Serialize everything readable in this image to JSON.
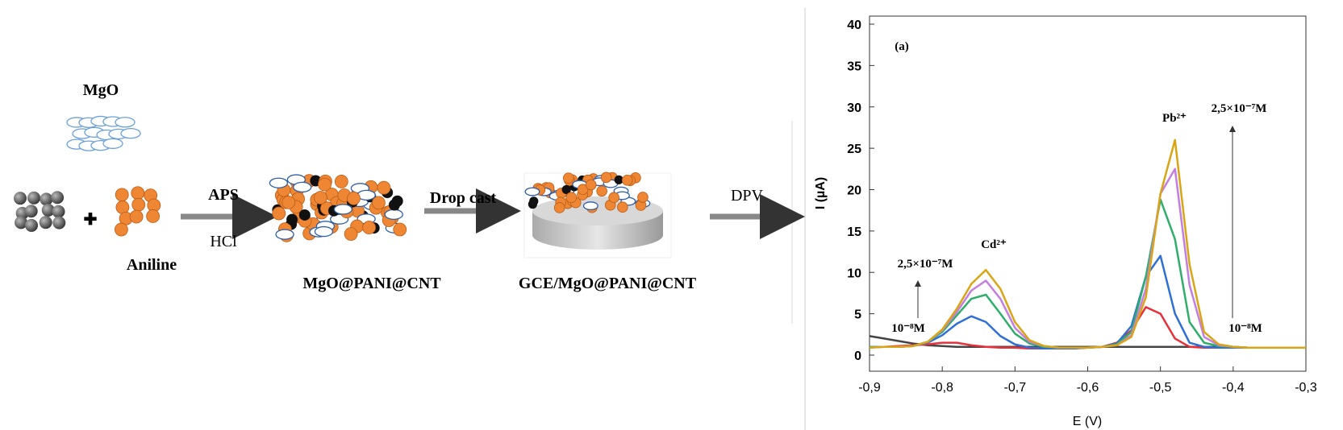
{
  "diagram": {
    "mgo": "MgO",
    "aniline": "Aniline",
    "aps": "APS",
    "hcl": "HCl",
    "composite": "MgO@PANI@CNT",
    "drop_cast": "Drop cast",
    "electrode": "GCE/MgO@PANI@CNT",
    "dpv": "DPV"
  },
  "chart_data": {
    "type": "line",
    "xlabel": "E (V)",
    "ylabel": "I (µA)",
    "annotations": [
      "(a)",
      "Cd²⁺",
      "Pb²⁺",
      "2,5×10⁻⁷M",
      "2,5×10⁻⁷M",
      "10⁻⁸M",
      "10⁻⁸M"
    ],
    "x": [
      -0.9,
      -0.88,
      -0.86,
      -0.84,
      -0.82,
      -0.8,
      -0.78,
      -0.76,
      -0.74,
      -0.72,
      -0.7,
      -0.68,
      -0.66,
      -0.64,
      -0.62,
      -0.6,
      -0.58,
      -0.56,
      -0.54,
      -0.52,
      -0.5,
      -0.48,
      -0.46,
      -0.44,
      -0.42,
      -0.4,
      -0.38,
      -0.36,
      -0.34,
      -0.32,
      -0.3
    ],
    "series": [
      {
        "color": "#444444",
        "values": [
          2.3,
          2.0,
          1.7,
          1.4,
          1.2,
          1.1,
          1.0,
          1.0,
          1.0,
          1.0,
          1.0,
          1.0,
          1.0,
          1.0,
          1.0,
          1.0,
          1.0,
          1.0,
          1.0,
          1.0,
          1.0,
          1.0,
          1.0,
          1.0,
          1.0,
          1.0,
          0.9,
          0.9,
          0.9,
          0.9,
          0.9
        ]
      },
      {
        "color": "#e8303a",
        "values": [
          1.0,
          1.0,
          1.1,
          1.2,
          1.3,
          1.5,
          1.5,
          1.2,
          1.0,
          0.9,
          0.9,
          0.8,
          0.8,
          0.8,
          0.8,
          0.9,
          1.0,
          1.5,
          3.0,
          5.8,
          5.0,
          2.0,
          1.0,
          0.9,
          0.9,
          0.9,
          0.9,
          0.9,
          0.9,
          0.9,
          0.9
        ]
      },
      {
        "color": "#2f6fd6",
        "values": [
          1.0,
          1.0,
          1.0,
          1.1,
          1.5,
          2.4,
          3.8,
          4.7,
          4.0,
          2.3,
          1.3,
          0.9,
          0.8,
          0.8,
          0.8,
          0.9,
          1.0,
          1.4,
          3.5,
          9.5,
          12.0,
          5.0,
          1.5,
          1.0,
          0.9,
          0.9,
          0.9,
          0.9,
          0.9,
          0.9,
          0.9
        ]
      },
      {
        "color": "#2fae6a",
        "values": [
          1.0,
          1.0,
          1.0,
          1.1,
          1.6,
          2.8,
          4.8,
          6.8,
          7.3,
          5.0,
          2.6,
          1.4,
          1.0,
          0.9,
          0.9,
          0.9,
          1.0,
          1.3,
          2.8,
          9.5,
          18.8,
          14.0,
          4.0,
          1.5,
          1.1,
          1.0,
          0.9,
          0.9,
          0.9,
          0.9,
          0.9
        ]
      },
      {
        "color": "#c57ee0",
        "values": [
          0.9,
          1.0,
          1.0,
          1.1,
          1.6,
          3.0,
          5.2,
          7.8,
          9.0,
          6.8,
          3.3,
          1.6,
          1.1,
          0.9,
          0.9,
          0.9,
          1.0,
          1.2,
          2.4,
          8.0,
          19.5,
          22.5,
          8.5,
          2.2,
          1.2,
          1.0,
          0.9,
          0.9,
          0.9,
          0.9,
          0.9
        ]
      },
      {
        "color": "#d9a514",
        "values": [
          0.9,
          1.0,
          1.0,
          1.1,
          1.6,
          3.1,
          5.6,
          8.6,
          10.3,
          8.0,
          4.0,
          1.8,
          1.1,
          0.9,
          0.9,
          0.9,
          1.0,
          1.2,
          2.2,
          7.0,
          19.5,
          26.0,
          11.0,
          2.8,
          1.3,
          1.0,
          0.9,
          0.9,
          0.9,
          0.9,
          0.9
        ]
      }
    ],
    "xlim": [
      -0.9,
      -0.3
    ],
    "xticks": [
      {
        "value": -0.9,
        "label": "-0,9"
      },
      {
        "value": -0.8,
        "label": "-0,8"
      },
      {
        "value": -0.7,
        "label": "-0,7"
      },
      {
        "value": -0.6,
        "label": "-0,6"
      },
      {
        "value": -0.5,
        "label": "-0,5"
      },
      {
        "value": -0.4,
        "label": "-0,4"
      },
      {
        "value": -0.3,
        "label": "-0,3"
      }
    ],
    "ylim": [
      0,
      40
    ],
    "yticks": [
      0,
      5,
      10,
      15,
      20,
      25,
      30,
      35,
      40
    ],
    "grid": false
  }
}
